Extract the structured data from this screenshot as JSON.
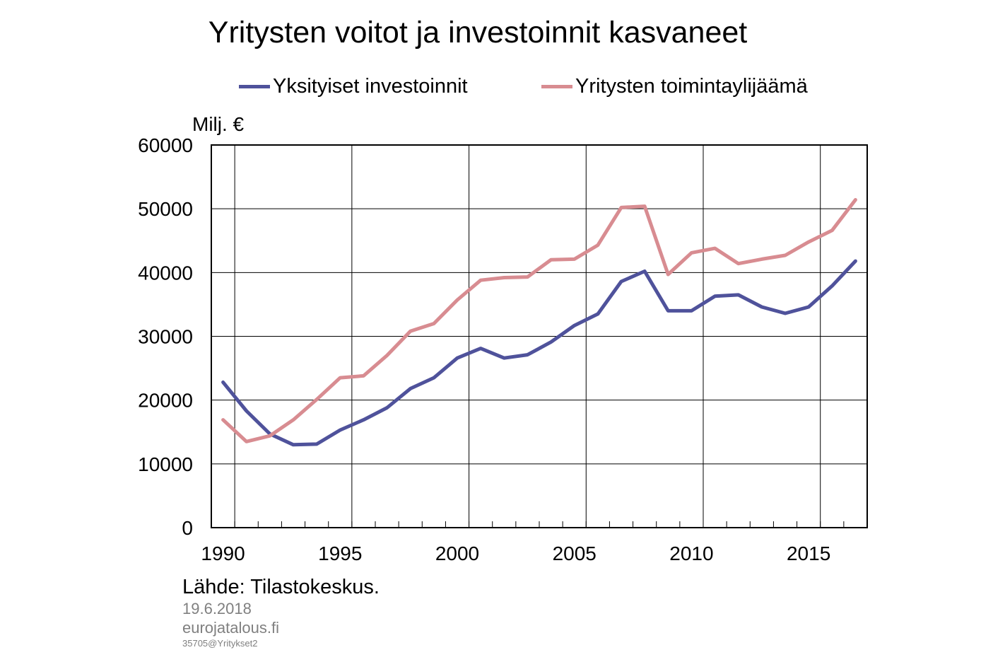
{
  "chart_data": {
    "type": "line",
    "title": "Yritysten voitot ja investoinnit kasvaneet",
    "ylabel": "Milj. €",
    "ylim": [
      0,
      60000
    ],
    "yticks": [
      0,
      10000,
      20000,
      30000,
      40000,
      50000,
      60000
    ],
    "xlim": [
      1989.5,
      2017.5
    ],
    "xticks": [
      1990,
      1995,
      2000,
      2005,
      2010,
      2015
    ],
    "grid": true,
    "legend_position": "top",
    "x": [
      1990,
      1991,
      1992,
      1993,
      1994,
      1995,
      1996,
      1997,
      1998,
      1999,
      2000,
      2001,
      2002,
      2003,
      2004,
      2005,
      2006,
      2007,
      2008,
      2009,
      2010,
      2011,
      2012,
      2013,
      2014,
      2015,
      2016,
      2017
    ],
    "series": [
      {
        "name": "Yksityiset investoinnit",
        "color": "#4f529b",
        "values": [
          22800,
          18300,
          14700,
          13000,
          13100,
          15300,
          16900,
          18800,
          21800,
          23500,
          26600,
          28100,
          26600,
          27100,
          29100,
          31700,
          33500,
          38600,
          40200,
          34000,
          34000,
          36300,
          36500,
          34600,
          33600,
          34600,
          37900,
          41800
        ]
      },
      {
        "name": "Yritysten toimintaylijäämä",
        "color": "#d88c91",
        "values": [
          16900,
          13500,
          14400,
          16900,
          20100,
          23500,
          23800,
          27000,
          30800,
          32000,
          35700,
          38800,
          39200,
          39300,
          42000,
          42100,
          44300,
          50200,
          50400,
          39700,
          43100,
          43800,
          41400,
          42100,
          42700,
          44800,
          46600,
          51400
        ]
      }
    ]
  },
  "source": "Lähde: Tilastokeskus.",
  "date": "19.6.2018",
  "site": "eurojatalous.fi",
  "code": "35705@Yritykset2"
}
